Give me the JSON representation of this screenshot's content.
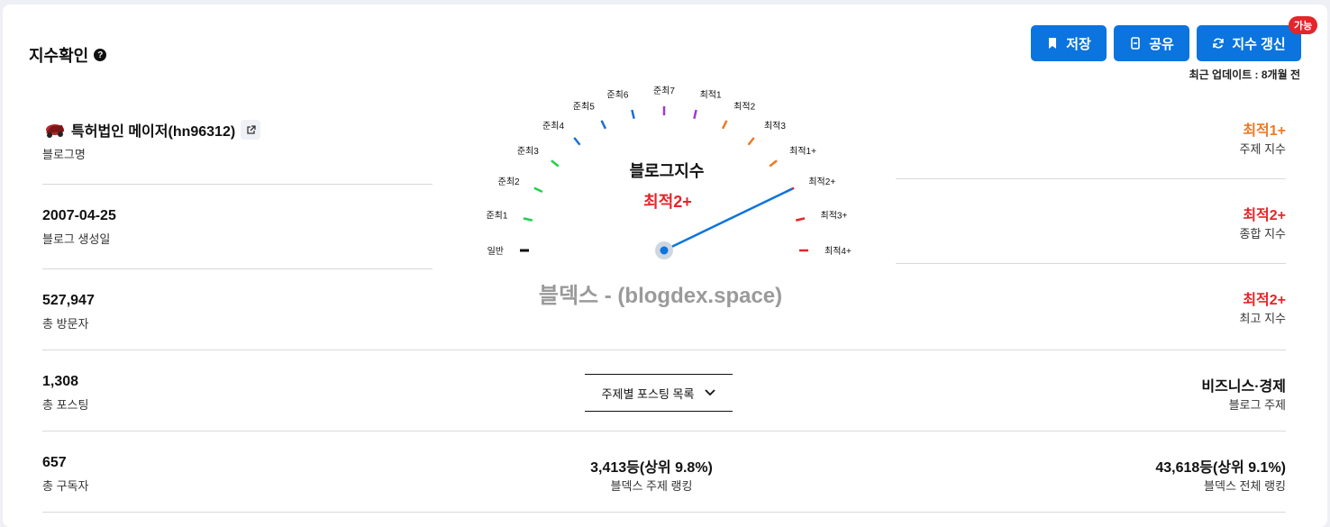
{
  "header": {
    "title": "지수확인",
    "help_icon": "question-circle-icon",
    "buttons": {
      "save": "저장",
      "share": "공유",
      "refresh": "지수 갱신"
    },
    "refresh_badge": "가능",
    "updated": "최근 업데이트 : 8개월 전",
    "accent": "#0b74de"
  },
  "left": {
    "blog_name": "특허법인 메이저(hn96312)",
    "blog_name_label": "블로그명",
    "created": "2007-04-25",
    "created_label": "블로그 생성일",
    "visitors": "527,947",
    "visitors_label": "총 방문자",
    "posts": "1,308",
    "posts_label": "총 포스팅",
    "subscribers": "657",
    "subscribers_label": "총 구독자"
  },
  "gauge": {
    "title": "블로그지수",
    "value": "최적2+",
    "watermark": "블덱스 - (blogdex.space)",
    "ticks": [
      "일반",
      "준최1",
      "준최2",
      "준최3",
      "준최4",
      "준최5",
      "준최6",
      "준최7",
      "최적1",
      "최적2",
      "최적3",
      "최적1+",
      "최적2+",
      "최적3+",
      "최적4+"
    ],
    "current_index": 12,
    "needle_color": "#0b74de"
  },
  "middle": {
    "dropdown": "주제별 포스팅 목록",
    "topic_rank": "3,413등(상위 9.8%)",
    "topic_rank_label": "블덱스 주제 랭킹"
  },
  "right": {
    "topic_index": "최적1+",
    "topic_index_label": "주제 지수",
    "overall_index": "최적2+",
    "overall_index_label": "종합 지수",
    "max_index": "최적2+",
    "max_index_label": "최고 지수",
    "category": "비즈니스·경제",
    "category_label": "블로그 주제",
    "total_rank": "43,618등(상위 9.1%)",
    "total_rank_label": "블덱스 전체 랭킹"
  }
}
